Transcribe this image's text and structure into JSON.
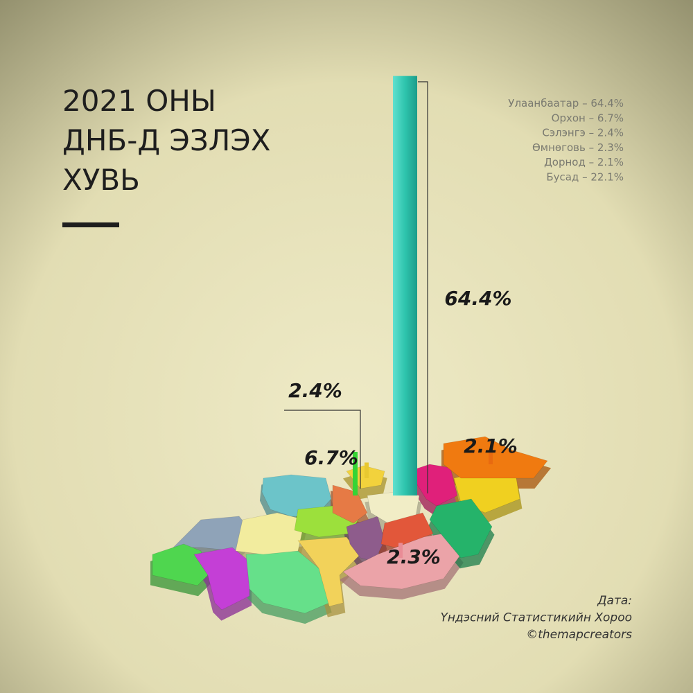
{
  "title": [
    "2021 ОНЫ",
    "ДНБ-Д ЭЗЛЭХ",
    "ХУВЬ"
  ],
  "legend": [
    "Улаанбаатар – 64.4%",
    "Орхон – 6.7%",
    "Сэлэнгэ – 2.4%",
    "Өмнөговь – 2.3%",
    "Дорнод – 2.1%",
    "Бусад – 22.1%"
  ],
  "map": {
    "type": "bar3d",
    "values": [
      64.4,
      6.7,
      2.4,
      2.3,
      2.1
    ],
    "value_labels": [
      "64.4%",
      "6.7%",
      "2.4%",
      "2.3%",
      "2.1%"
    ]
  },
  "source": [
    "Дата:",
    "Үндэсний Статистикийн Хороо",
    "©themapcreators"
  ]
}
